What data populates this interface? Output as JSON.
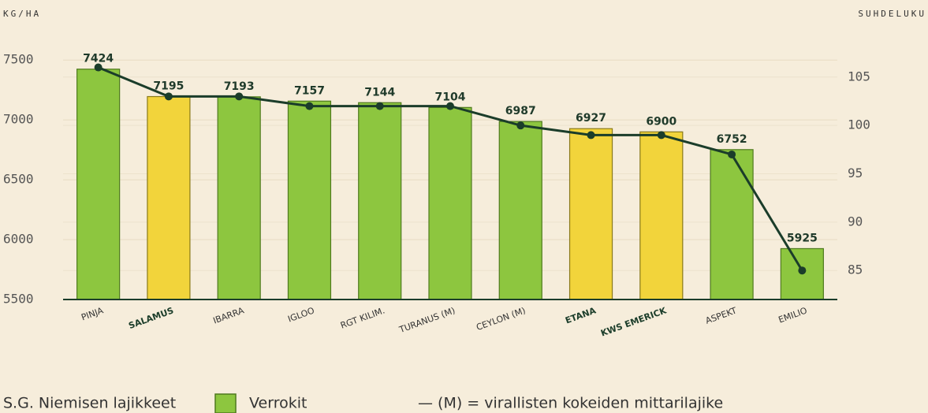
{
  "chart_data": {
    "type": "bar_line",
    "y_label": "KG/HA",
    "y2_label": "SUHDELUKU",
    "categories": [
      "PINJA",
      "SALAMUS",
      "IBARRA",
      "IGLOO",
      "RGT KILIM.",
      "TURANUS (M)",
      "CEYLON (M)",
      "ETANA",
      "KWS EMERICK",
      "ASPEKT",
      "EMILIO"
    ],
    "series": [
      {
        "type": "bar",
        "values": [
          7424,
          7195,
          7193,
          7157,
          7144,
          7104,
          6987,
          6927,
          6900,
          6752,
          5925
        ],
        "colors": [
          "#8dc63f",
          "#f2d43b",
          "#8dc63f",
          "#8dc63f",
          "#8dc63f",
          "#8dc63f",
          "#8dc63f",
          "#f2d43b",
          "#f2d43b",
          "#8dc63f",
          "#8dc63f"
        ]
      },
      {
        "type": "line",
        "axis": "y2",
        "color": "#1b3d2a",
        "values": [
          106,
          103,
          103,
          102,
          102,
          102,
          100,
          99,
          99,
          97,
          85
        ]
      }
    ],
    "ylim": [
      5500,
      7600
    ],
    "yticks": [
      5500,
      6000,
      6500,
      7000,
      7500
    ],
    "y2lim": [
      82,
      108
    ],
    "y2ticks": [
      85,
      90,
      95,
      100,
      105
    ],
    "grid": true,
    "legend": [
      {
        "label": "S.G. Niemisen lajikkeet",
        "color": "#f2d43b"
      },
      {
        "label": "Verrokit",
        "color": "#8dc63f"
      }
    ],
    "note": "— (M) = virallisten kokeiden mittarilajike"
  }
}
